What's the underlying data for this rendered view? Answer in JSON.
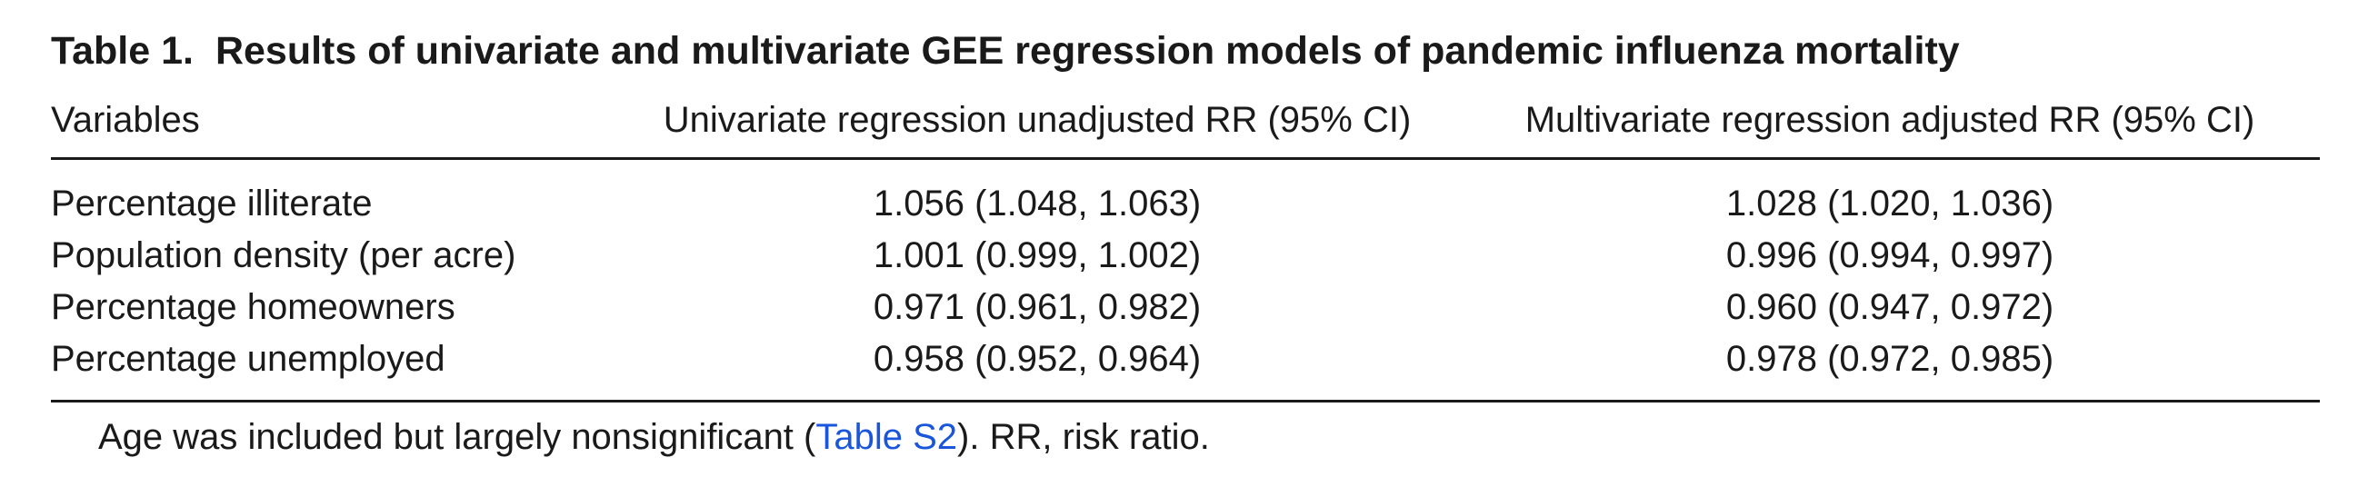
{
  "table": {
    "caption_label": "Table 1.",
    "caption_text": "Results of univariate and multivariate GEE regression models of pandemic influenza mortality",
    "headers": {
      "variables": "Variables",
      "univariate": "Univariate regression unadjusted RR (95% CI)",
      "multivariate": "Multivariate regression adjusted RR (95% CI)"
    },
    "rows": [
      {
        "variable": "Percentage illiterate",
        "univariate": "1.056 (1.048, 1.063)",
        "multivariate": "1.028 (1.020, 1.036)"
      },
      {
        "variable": "Population density (per acre)",
        "univariate": "1.001 (0.999, 1.002)",
        "multivariate": "0.996 (0.994, 0.997)"
      },
      {
        "variable": "Percentage homeowners",
        "univariate": "0.971 (0.961, 0.982)",
        "multivariate": "0.960 (0.947, 0.972)"
      },
      {
        "variable": "Percentage unemployed",
        "univariate": "0.958 (0.952, 0.964)",
        "multivariate": "0.978 (0.972, 0.985)"
      }
    ],
    "footnote": {
      "before_link": "Age was included but largely nonsignificant (",
      "link_text": "Table S2",
      "after_link": "). RR, risk ratio."
    }
  }
}
